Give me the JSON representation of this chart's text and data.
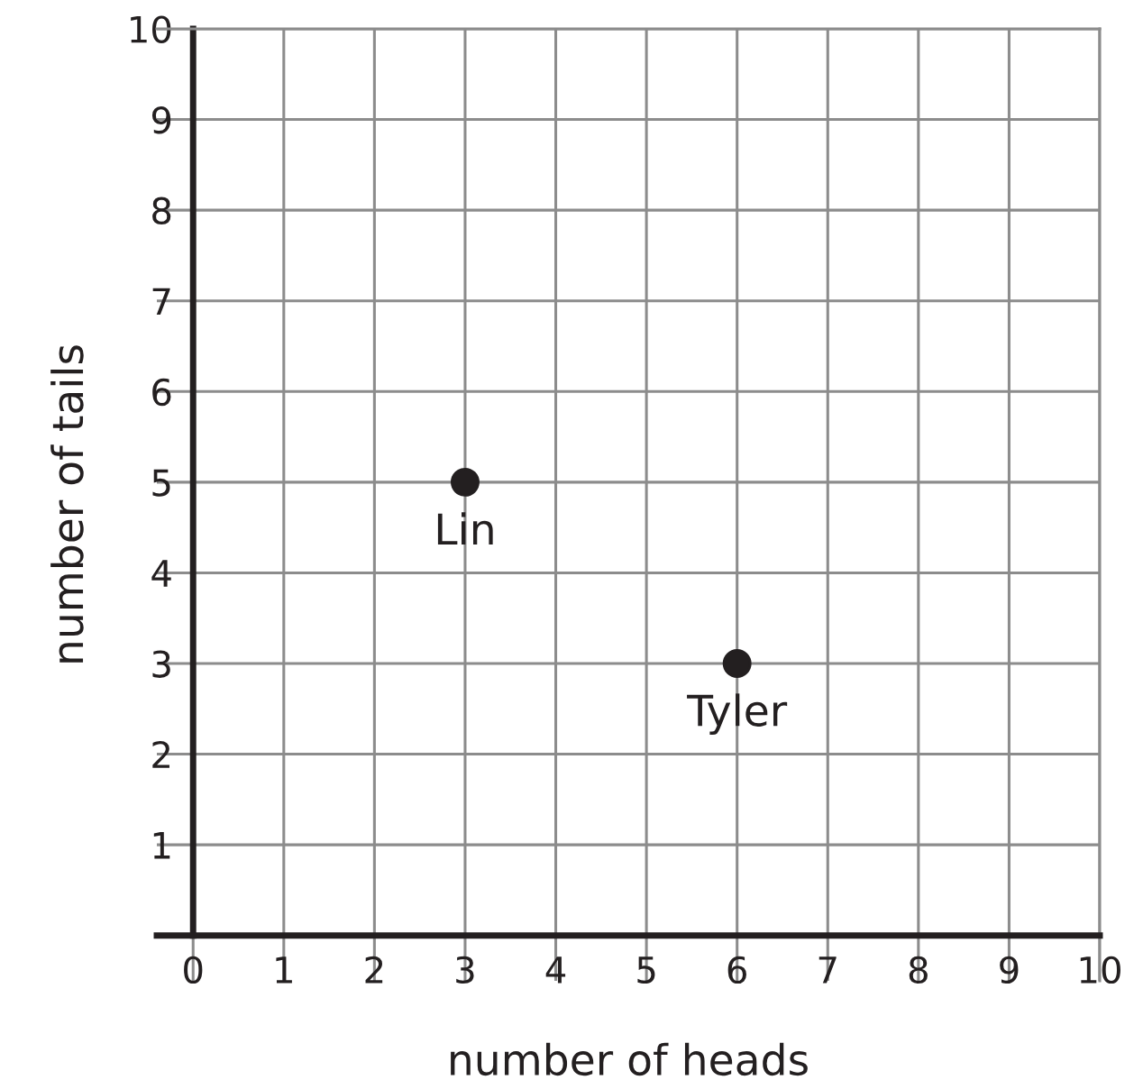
{
  "chart_data": {
    "type": "scatter",
    "xlabel": "number of heads",
    "ylabel": "number of tails",
    "x": [
      3,
      6
    ],
    "series": [
      {
        "color": "#231f20",
        "values": [
          5,
          3
        ]
      }
    ],
    "marker": "circle",
    "xlim": [
      -0.4,
      10
    ],
    "ylim": [
      -0.5,
      10
    ],
    "xticks": [
      0,
      1,
      2,
      3,
      4,
      5,
      6,
      7,
      8,
      9,
      10
    ],
    "yticks": [
      1,
      2,
      3,
      4,
      5,
      6,
      7,
      8,
      9,
      10
    ],
    "grid": true,
    "annotations": [
      {
        "text": "Lin",
        "x": 3,
        "y": 5
      },
      {
        "text": "Tyler",
        "x": 6,
        "y": 3
      }
    ]
  }
}
